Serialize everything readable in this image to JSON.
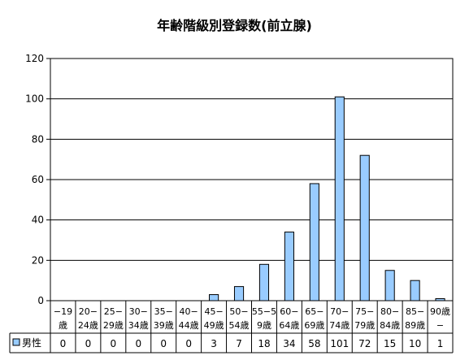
{
  "chart_data": {
    "type": "bar",
    "title": "年齢階級別登録数(前立腺)",
    "categories": [
      [
        "−19",
        "歳"
      ],
      [
        "20−",
        "24歳"
      ],
      [
        "25−",
        "29歳"
      ],
      [
        "30−",
        "34歳"
      ],
      [
        "35−",
        "39歳"
      ],
      [
        "40−",
        "44歳"
      ],
      [
        "45−",
        "49歳"
      ],
      [
        "50−",
        "54歳"
      ],
      [
        "55−5",
        "9歳"
      ],
      [
        "60−",
        "64歳"
      ],
      [
        "65−",
        "69歳"
      ],
      [
        "70−",
        "74歳"
      ],
      [
        "75−",
        "79歳"
      ],
      [
        "80−",
        "84歳"
      ],
      [
        "85−",
        "89歳"
      ],
      [
        "90歳",
        "−"
      ]
    ],
    "series": [
      {
        "name": "男性",
        "values": [
          0,
          0,
          0,
          0,
          0,
          0,
          3,
          7,
          18,
          34,
          58,
          101,
          72,
          15,
          10,
          1
        ],
        "color": "#99ccff"
      }
    ],
    "yticks": [
      "0",
      "20",
      "40",
      "60",
      "80",
      "100",
      "120"
    ],
    "ylim": [
      0,
      120
    ],
    "grid": true,
    "legend": "data-table-left"
  }
}
